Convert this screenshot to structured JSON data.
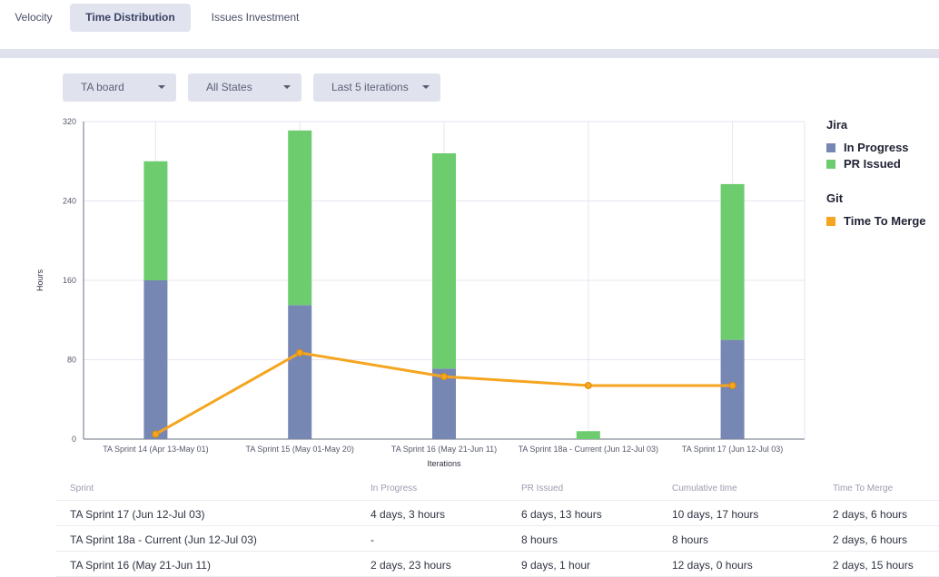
{
  "tabs": [
    {
      "label": "Velocity",
      "active": false
    },
    {
      "label": "Time Distribution",
      "active": true
    },
    {
      "label": "Issues Investment",
      "active": false
    }
  ],
  "filters": {
    "board": "TA board",
    "states": "All States",
    "iterations": "Last 5 iterations"
  },
  "legend": {
    "jira_title": "Jira",
    "in_progress": "In Progress",
    "pr_issued": "PR Issued",
    "git_title": "Git",
    "time_to_merge": "Time To Merge"
  },
  "colors": {
    "in_progress": "#7687b3",
    "pr_issued": "#6ccc6e",
    "time_to_merge": "#f5a51f"
  },
  "chart_data": {
    "type": "bar",
    "stacked": true,
    "xlabel": "Iterations",
    "ylabel": "Hours",
    "ylim": [
      0,
      320
    ],
    "yticks": [
      0,
      80,
      160,
      240,
      320
    ],
    "grid": true,
    "legend_position": "right",
    "categories": [
      "TA Sprint 14 (Apr 13-May 01)",
      "TA Sprint 15 (May 01-May 20)",
      "TA Sprint 16 (May 21-Jun 11)",
      "TA Sprint 18a - Current (Jun 12-Jul 03)",
      "TA Sprint 17 (Jun 12-Jul 03)"
    ],
    "series": [
      {
        "name": "In Progress",
        "type": "bar",
        "values": [
          160,
          135,
          71,
          0,
          100
        ]
      },
      {
        "name": "PR Issued",
        "type": "bar",
        "values": [
          120,
          176,
          217,
          8,
          157
        ]
      },
      {
        "name": "Time To Merge",
        "type": "line",
        "values": [
          5,
          87,
          63,
          54,
          54
        ]
      }
    ]
  },
  "table": {
    "headers": [
      "Sprint",
      "In Progress",
      "PR Issued",
      "Cumulative time",
      "Time To Merge"
    ],
    "rows": [
      [
        "TA Sprint 17 (Jun 12-Jul 03)",
        "4 days, 3 hours",
        "6 days, 13 hours",
        "10 days, 17 hours",
        "2 days, 6 hours"
      ],
      [
        "TA Sprint 18a - Current (Jun 12-Jul 03)",
        "-",
        "8 hours",
        "8 hours",
        "2 days, 6 hours"
      ],
      [
        "TA Sprint 16 (May 21-Jun 11)",
        "2 days, 23 hours",
        "9 days, 1 hour",
        "12 days, 0 hours",
        "2 days, 15 hours"
      ]
    ]
  }
}
